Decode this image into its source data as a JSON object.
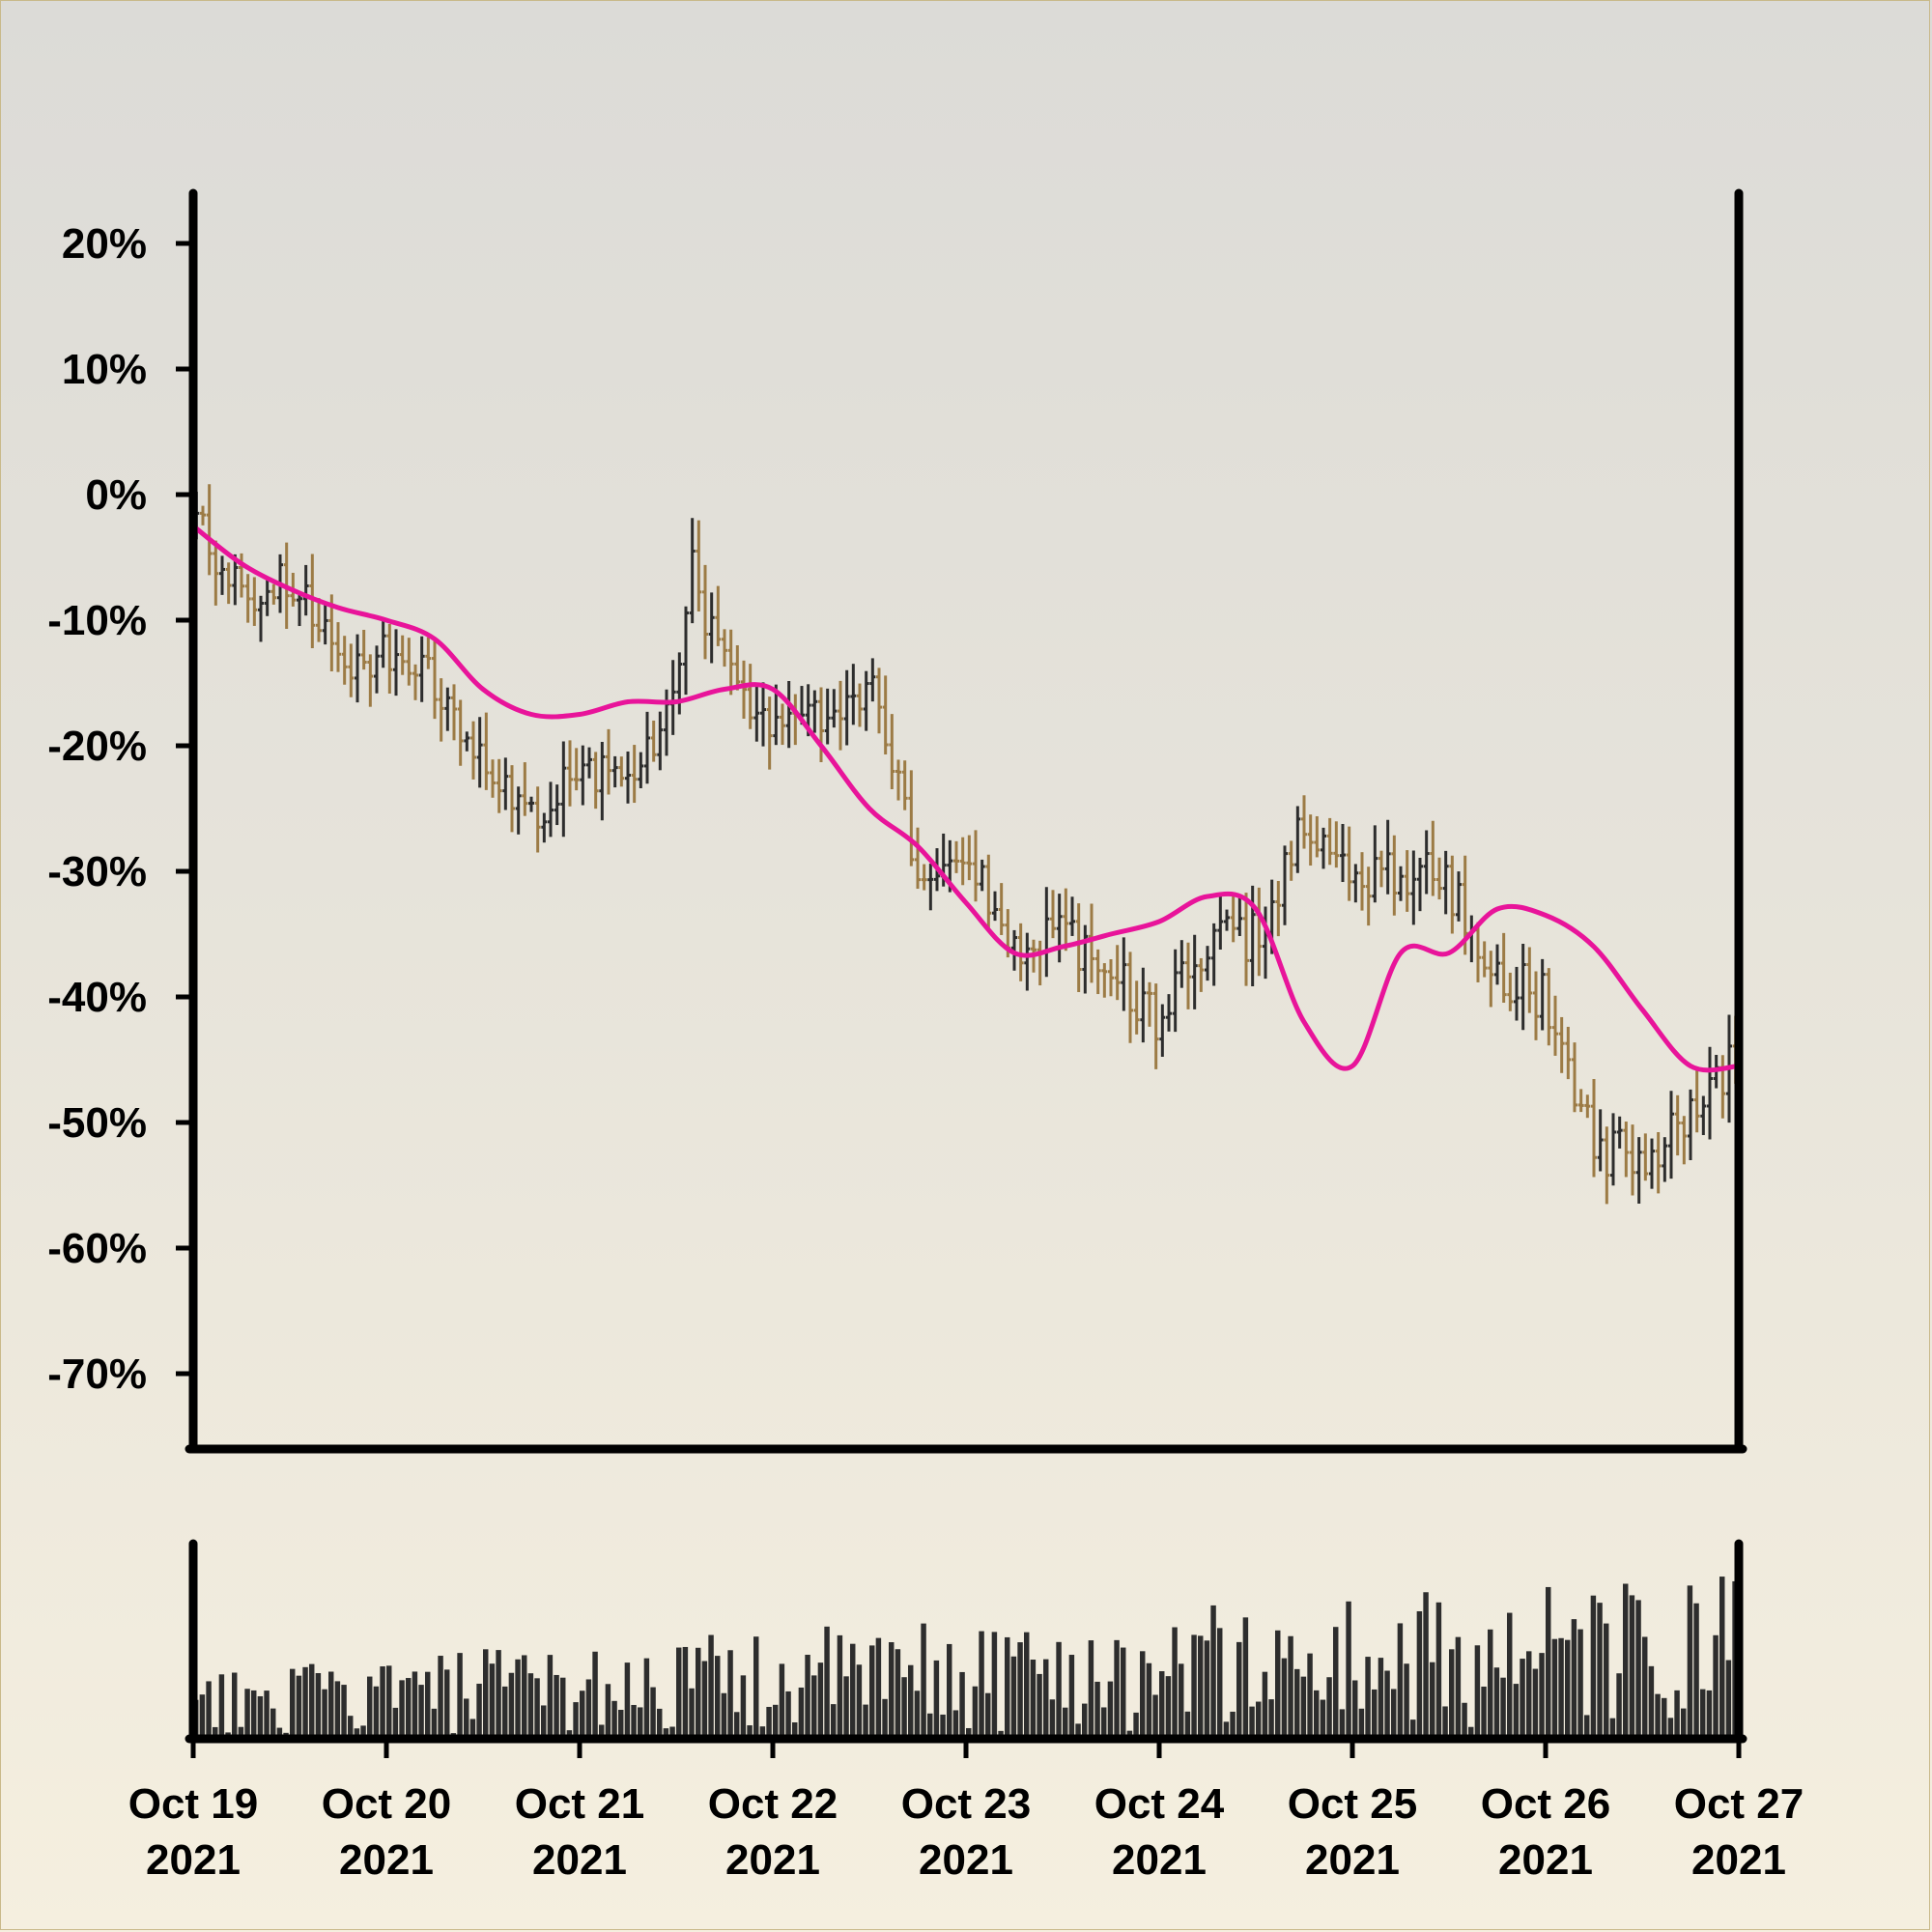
{
  "chart_data": [
    {
      "type": "ohlc",
      "title": "",
      "xlabel": "",
      "ylabel": "",
      "ylim": [
        -76,
        24
      ],
      "xlim": [
        "2021-10-19",
        "2021-10-27"
      ],
      "yticks": [
        "20%",
        "10%",
        "0%",
        "-10%",
        "-20%",
        "-30%",
        "-40%",
        "-50%",
        "-60%",
        "-70%"
      ],
      "ytick_values": [
        20,
        10,
        0,
        -10,
        -20,
        -30,
        -40,
        -50,
        -60,
        -70
      ],
      "grid": false,
      "legend": "none",
      "series": [
        {
          "kind": "ohlc_close_path",
          "unit": "%",
          "points_per_day": 30,
          "close_anchors": [
            {
              "x": "2021-10-19 00:00",
              "y": -2
            },
            {
              "x": "2021-10-19 06:00",
              "y": -8
            },
            {
              "x": "2021-10-19 12:00",
              "y": -6
            },
            {
              "x": "2021-10-19 18:00",
              "y": -14
            },
            {
              "x": "2021-10-20 00:00",
              "y": -12
            },
            {
              "x": "2021-10-20 06:00",
              "y": -15
            },
            {
              "x": "2021-10-20 12:00",
              "y": -22
            },
            {
              "x": "2021-10-20 18:00",
              "y": -26
            },
            {
              "x": "2021-10-21 00:00",
              "y": -21
            },
            {
              "x": "2021-10-21 06:00",
              "y": -23
            },
            {
              "x": "2021-10-21 12:00",
              "y": -15
            },
            {
              "x": "2021-10-21 14:00",
              "y": -6
            },
            {
              "x": "2021-10-21 18:00",
              "y": -14
            },
            {
              "x": "2021-10-22 00:00",
              "y": -18
            },
            {
              "x": "2021-10-22 06:00",
              "y": -17
            },
            {
              "x": "2021-10-22 12:00",
              "y": -15
            },
            {
              "x": "2021-10-22 18:00",
              "y": -30
            },
            {
              "x": "2021-10-23 00:00",
              "y": -28
            },
            {
              "x": "2021-10-23 06:00",
              "y": -36
            },
            {
              "x": "2021-10-23 12:00",
              "y": -35
            },
            {
              "x": "2021-10-23 18:00",
              "y": -38
            },
            {
              "x": "2021-10-24 00:00",
              "y": -42
            },
            {
              "x": "2021-10-24 06:00",
              "y": -36
            },
            {
              "x": "2021-10-24 12:00",
              "y": -35
            },
            {
              "x": "2021-10-24 18:00",
              "y": -26
            },
            {
              "x": "2021-10-25 00:00",
              "y": -30
            },
            {
              "x": "2021-10-25 06:00",
              "y": -30
            },
            {
              "x": "2021-10-25 12:00",
              "y": -31
            },
            {
              "x": "2021-10-25 18:00",
              "y": -38
            },
            {
              "x": "2021-10-26 00:00",
              "y": -40
            },
            {
              "x": "2021-10-26 06:00",
              "y": -52
            },
            {
              "x": "2021-10-26 12:00",
              "y": -53
            },
            {
              "x": "2021-10-26 18:00",
              "y": -50
            },
            {
              "x": "2021-10-27 00:00",
              "y": -44
            }
          ],
          "colors": {
            "up": "#2d2d2d",
            "down": "#9c7b45"
          }
        },
        {
          "kind": "moving_average",
          "unit": "%",
          "color": "#e8149a",
          "x": [
            "2021-10-19 00:00",
            "2021-10-19 06:00",
            "2021-10-19 12:00",
            "2021-10-19 18:00",
            "2021-10-20 00:00",
            "2021-10-20 06:00",
            "2021-10-20 12:00",
            "2021-10-20 18:00",
            "2021-10-21 00:00",
            "2021-10-21 06:00",
            "2021-10-21 12:00",
            "2021-10-21 18:00",
            "2021-10-22 00:00",
            "2021-10-22 06:00",
            "2021-10-22 12:00",
            "2021-10-22 18:00",
            "2021-10-23 00:00",
            "2021-10-23 06:00",
            "2021-10-23 12:00",
            "2021-10-23 18:00",
            "2021-10-24 00:00",
            "2021-10-24 06:00",
            "2021-10-24 12:00",
            "2021-10-24 18:00",
            "2021-10-25 00:00",
            "2021-10-25 06:00",
            "2021-10-25 12:00",
            "2021-10-25 18:00",
            "2021-10-26 00:00",
            "2021-10-26 06:00",
            "2021-10-26 12:00",
            "2021-10-26 18:00",
            "2021-10-27 00:00"
          ],
          "values": [
            -2.5,
            -5.5,
            -7.5,
            -9,
            -10,
            -11.5,
            -15.5,
            -17.5,
            -17.5,
            -16.5,
            -16.5,
            -15.5,
            -15.5,
            -20,
            -25,
            -28,
            -32.5,
            -36.5,
            -36,
            -35,
            -34,
            -32,
            -33,
            -42,
            -45.5,
            -36.5,
            -36.5,
            -33,
            -33.5,
            -36,
            -41,
            -45.5,
            -45.5
          ]
        }
      ]
    },
    {
      "type": "bar",
      "title": "",
      "xlabel": "",
      "ylabel": "",
      "description_kind": "volume",
      "bars_per_day": 30,
      "color": "#2d2d2d",
      "xticks": [
        [
          "Oct 19",
          "2021"
        ],
        [
          "Oct 20",
          "2021"
        ],
        [
          "Oct 21",
          "2021"
        ],
        [
          "Oct 22",
          "2021"
        ],
        [
          "Oct 23",
          "2021"
        ],
        [
          "Oct 24",
          "2021"
        ],
        [
          "Oct 25",
          "2021"
        ],
        [
          "Oct 26",
          "2021"
        ],
        [
          "Oct 27",
          "2021"
        ]
      ]
    }
  ]
}
